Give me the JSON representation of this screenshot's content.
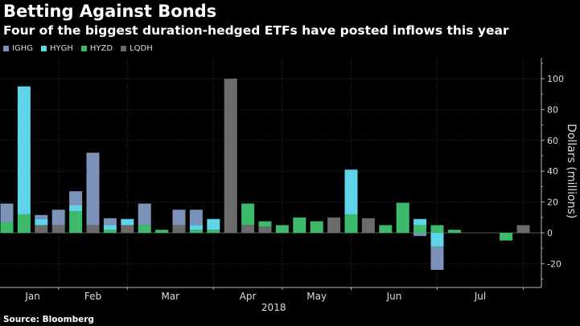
{
  "title": "Betting Against Bonds",
  "subtitle": "Four of the biggest duration-hedged ETFs have posted inflows this year",
  "source": "Source: Bloomberg",
  "chart_data": {
    "type": "bar",
    "stacked": true,
    "title": "Betting Against Bonds",
    "xlabel": "2018",
    "ylabel": "Dollars (millions)",
    "ylim": [
      -35,
      113
    ],
    "yticks": [
      -20,
      0,
      20,
      40,
      60,
      80,
      100
    ],
    "grid": true,
    "legend_position": "top-left",
    "month_labels": [
      {
        "label": "Jan",
        "week": 1.5
      },
      {
        "label": "Feb",
        "week": 5
      },
      {
        "label": "Mar",
        "week": 9.5
      },
      {
        "label": "Apr",
        "week": 14
      },
      {
        "label": "May",
        "week": 18
      },
      {
        "label": "Jun",
        "week": 22.5
      },
      {
        "label": "Jul",
        "week": 27.5
      }
    ],
    "month_boundaries": [
      3,
      7,
      12,
      16,
      20,
      25,
      30
    ],
    "weeks": 31,
    "series": [
      {
        "name": "LQDH",
        "color": "#6b6b6b",
        "values": [
          0,
          0,
          5,
          5,
          0,
          5,
          0,
          5,
          0,
          0,
          5,
          0,
          0,
          100,
          5,
          4,
          0,
          0,
          0,
          10,
          0,
          9.5,
          0,
          0,
          0,
          0,
          0,
          0,
          0,
          0,
          5
        ]
      },
      {
        "name": "HYZD",
        "color": "#3dbb6a",
        "values": [
          7,
          12,
          0,
          0,
          14,
          0,
          2,
          0,
          5,
          2,
          0,
          2,
          2,
          0,
          14,
          3.5,
          5,
          10,
          7.5,
          0,
          12,
          0,
          5,
          19.5,
          5,
          5,
          2,
          0,
          0,
          -5,
          0
        ]
      },
      {
        "name": "HYGH",
        "color": "#5fd3e8",
        "values": [
          0,
          83,
          4,
          0,
          4,
          0,
          3,
          4,
          0,
          0,
          0,
          3,
          7,
          0,
          0,
          0,
          0,
          0,
          0,
          0,
          29,
          0,
          0,
          0,
          4,
          -9,
          0,
          0,
          0,
          0,
          0
        ]
      },
      {
        "name": "IGHG",
        "color": "#7d92b8",
        "values": [
          12,
          0,
          2.6,
          10,
          9,
          47,
          4.5,
          0,
          14,
          0,
          10,
          10,
          0,
          0,
          0,
          0,
          0,
          0,
          0,
          0,
          0,
          0,
          0,
          0,
          -2,
          -15,
          0,
          0,
          0,
          0,
          0
        ]
      }
    ],
    "legend_order": [
      "IGHG",
      "HYGH",
      "HYZD",
      "LQDH"
    ]
  }
}
